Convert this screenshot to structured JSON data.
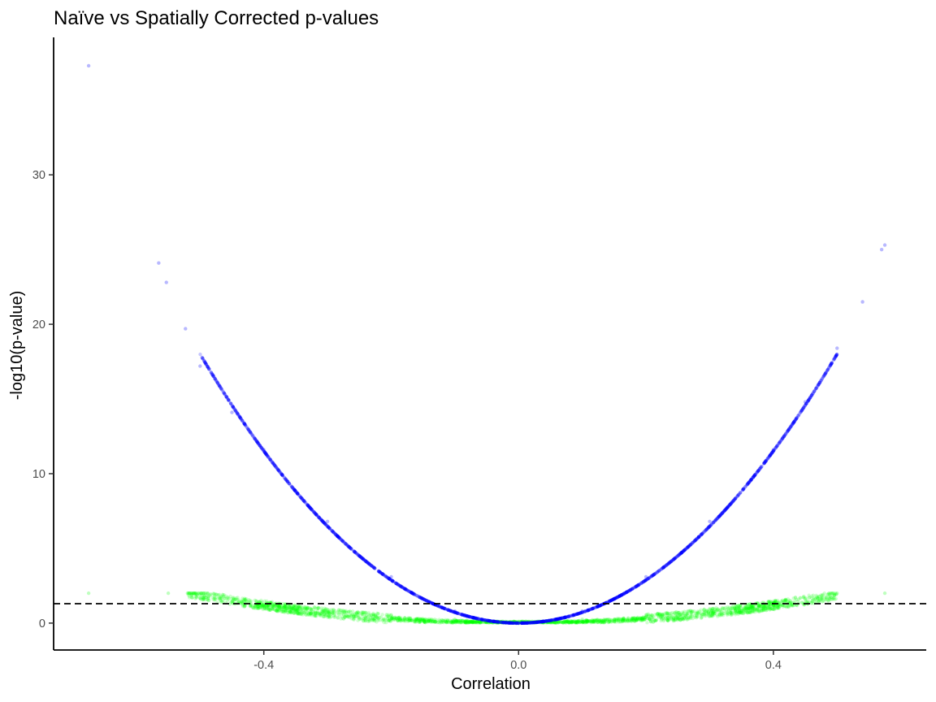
{
  "chart_data": {
    "type": "scatter",
    "title": "Naïve vs Spatially Corrected p-values",
    "xlabel": "Correlation",
    "ylabel": "-log10(p-value)",
    "xlim": [
      -0.73,
      0.64
    ],
    "ylim": [
      -1.8,
      39.2
    ],
    "x_ticks": [
      -0.4,
      0.0,
      0.4
    ],
    "x_tick_labels": [
      "-0.4",
      "0.0",
      "0.4"
    ],
    "y_ticks": [
      0,
      10,
      20,
      30
    ],
    "y_tick_labels": [
      "0",
      "10",
      "20",
      "30"
    ],
    "grid": false,
    "legend": "none",
    "threshold_line": {
      "y": 1.301,
      "style": "dashed",
      "color": "#000000"
    },
    "series": [
      {
        "color": "#0000ff",
        "shape": "parabola",
        "description_points": [
          [
            -0.675,
            37.3
          ],
          [
            -0.565,
            24.1
          ],
          [
            -0.553,
            22.8
          ],
          [
            -0.523,
            19.7
          ],
          [
            -0.5,
            17.2
          ],
          [
            -0.45,
            14.1
          ],
          [
            -0.4,
            11.6
          ],
          [
            -0.3,
            6.8
          ],
          [
            -0.2,
            3.1
          ],
          [
            -0.1,
            0.8
          ],
          [
            0.0,
            0.0
          ],
          [
            0.1,
            0.8
          ],
          [
            0.2,
            3.1
          ],
          [
            0.3,
            6.8
          ],
          [
            0.4,
            11.6
          ],
          [
            0.45,
            14.8
          ],
          [
            0.5,
            18.4
          ],
          [
            0.54,
            21.5
          ],
          [
            0.57,
            25.0
          ],
          [
            0.575,
            25.3
          ]
        ]
      },
      {
        "color": "#00ff00",
        "shape": "band",
        "description_points": [
          [
            -0.675,
            2.0
          ],
          [
            -0.55,
            2.0
          ],
          [
            -0.4,
            1.2
          ],
          [
            -0.3,
            0.9
          ],
          [
            -0.2,
            0.55
          ],
          [
            -0.1,
            0.25
          ],
          [
            0.0,
            0.0
          ],
          [
            0.1,
            0.25
          ],
          [
            0.2,
            0.55
          ],
          [
            0.3,
            0.9
          ],
          [
            0.4,
            1.2
          ],
          [
            0.5,
            2.0
          ],
          [
            0.575,
            2.0
          ]
        ]
      }
    ],
    "colors": {
      "naive": "#0000ff",
      "corrected": "#00ff00",
      "axis": "#000000",
      "tick_text": "#4d4d4d"
    }
  }
}
